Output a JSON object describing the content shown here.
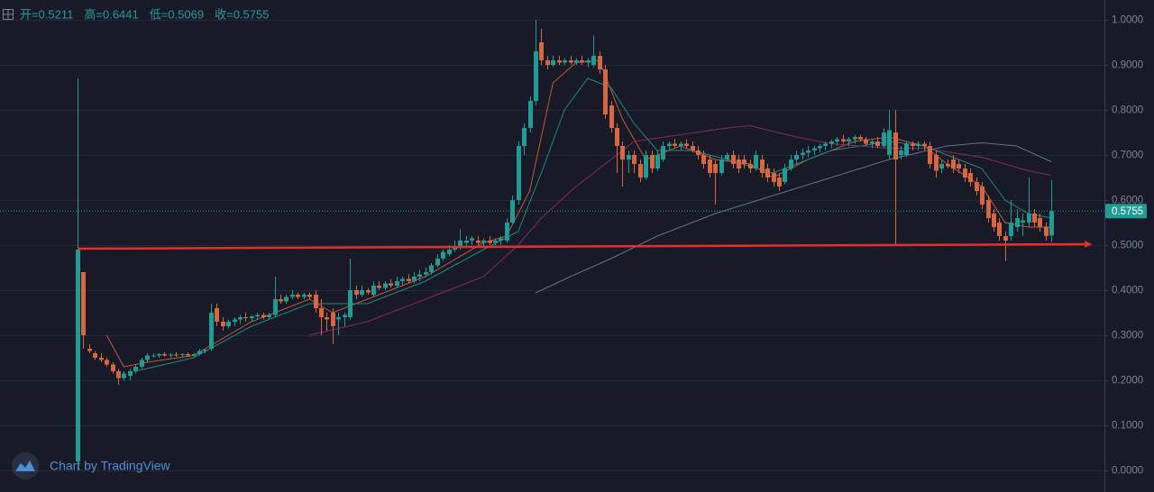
{
  "chart_data": {
    "type": "candlestick",
    "legend_items": [
      "开=0.5211",
      "高=0.6441",
      "低=0.5069",
      "收=0.5755"
    ],
    "watermark": "Chart by TradingView",
    "up_color": "#1f9c93",
    "down_color": "#d8673f",
    "grid": true,
    "ylim": [
      -0.048,
      1.044
    ],
    "yticks": [
      {
        "value": 0,
        "label": "0.0000"
      },
      {
        "value": 0.1,
        "label": "0.1000"
      },
      {
        "value": 0.2,
        "label": "0.2000"
      },
      {
        "value": 0.3,
        "label": "0.3000"
      },
      {
        "value": 0.4,
        "label": "0.4000"
      },
      {
        "value": 0.5,
        "label": "0.5000"
      },
      {
        "value": 0.6,
        "label": "0.6000"
      },
      {
        "value": 0.7,
        "label": "0.7000"
      },
      {
        "value": 0.8,
        "label": "0.8000"
      },
      {
        "value": 0.9,
        "label": "0.9000"
      },
      {
        "value": 1,
        "label": "1.0000"
      }
    ],
    "ohlc": [
      [
        0.02,
        0.87,
        0.0,
        0.49
      ],
      [
        0.44,
        0.44,
        0.27,
        0.3
      ],
      [
        0.27,
        0.28,
        0.26,
        0.265
      ],
      [
        0.26,
        0.265,
        0.245,
        0.25
      ],
      [
        0.25,
        0.26,
        0.24,
        0.245
      ],
      [
        0.245,
        0.25,
        0.23,
        0.235
      ],
      [
        0.235,
        0.24,
        0.215,
        0.22
      ],
      [
        0.22,
        0.225,
        0.19,
        0.205
      ],
      [
        0.205,
        0.22,
        0.2,
        0.215
      ],
      [
        0.21,
        0.225,
        0.2,
        0.22
      ],
      [
        0.22,
        0.235,
        0.215,
        0.23
      ],
      [
        0.23,
        0.25,
        0.225,
        0.245
      ],
      [
        0.245,
        0.26,
        0.24,
        0.255
      ],
      [
        0.255,
        0.26,
        0.25,
        0.255
      ],
      [
        0.255,
        0.26,
        0.25,
        0.258
      ],
      [
        0.258,
        0.262,
        0.252,
        0.255
      ],
      [
        0.255,
        0.26,
        0.25,
        0.257
      ],
      [
        0.257,
        0.262,
        0.252,
        0.256
      ],
      [
        0.256,
        0.26,
        0.25,
        0.258
      ],
      [
        0.258,
        0.262,
        0.252,
        0.255
      ],
      [
        0.255,
        0.26,
        0.25,
        0.258
      ],
      [
        0.258,
        0.27,
        0.255,
        0.265
      ],
      [
        0.265,
        0.27,
        0.26,
        0.268
      ],
      [
        0.27,
        0.37,
        0.265,
        0.35
      ],
      [
        0.36,
        0.37,
        0.32,
        0.33
      ],
      [
        0.33,
        0.34,
        0.31,
        0.32
      ],
      [
        0.32,
        0.335,
        0.315,
        0.33
      ],
      [
        0.33,
        0.34,
        0.32,
        0.335
      ],
      [
        0.335,
        0.345,
        0.325,
        0.34
      ],
      [
        0.34,
        0.35,
        0.33,
        0.338
      ],
      [
        0.338,
        0.345,
        0.33,
        0.342
      ],
      [
        0.342,
        0.35,
        0.335,
        0.345
      ],
      [
        0.345,
        0.35,
        0.335,
        0.34
      ],
      [
        0.34,
        0.35,
        0.335,
        0.345
      ],
      [
        0.345,
        0.43,
        0.34,
        0.38
      ],
      [
        0.38,
        0.39,
        0.37,
        0.375
      ],
      [
        0.375,
        0.39,
        0.37,
        0.385
      ],
      [
        0.385,
        0.4,
        0.38,
        0.39
      ],
      [
        0.39,
        0.395,
        0.38,
        0.385
      ],
      [
        0.385,
        0.395,
        0.38,
        0.39
      ],
      [
        0.39,
        0.395,
        0.38,
        0.385
      ],
      [
        0.39,
        0.4,
        0.35,
        0.36
      ],
      [
        0.36,
        0.38,
        0.3,
        0.34
      ],
      [
        0.34,
        0.35,
        0.31,
        0.335
      ],
      [
        0.35,
        0.36,
        0.28,
        0.32
      ],
      [
        0.335,
        0.35,
        0.3,
        0.34
      ],
      [
        0.34,
        0.35,
        0.32,
        0.345
      ],
      [
        0.34,
        0.47,
        0.335,
        0.4
      ],
      [
        0.4,
        0.41,
        0.38,
        0.39
      ],
      [
        0.39,
        0.41,
        0.385,
        0.4
      ],
      [
        0.4,
        0.405,
        0.39,
        0.395
      ],
      [
        0.39,
        0.42,
        0.385,
        0.41
      ],
      [
        0.41,
        0.42,
        0.4,
        0.405
      ],
      [
        0.405,
        0.42,
        0.4,
        0.415
      ],
      [
        0.415,
        0.425,
        0.405,
        0.41
      ],
      [
        0.41,
        0.43,
        0.405,
        0.42
      ],
      [
        0.42,
        0.43,
        0.41,
        0.425
      ],
      [
        0.425,
        0.435,
        0.415,
        0.42
      ],
      [
        0.42,
        0.44,
        0.415,
        0.43
      ],
      [
        0.43,
        0.445,
        0.42,
        0.435
      ],
      [
        0.435,
        0.45,
        0.43,
        0.44
      ],
      [
        0.44,
        0.46,
        0.435,
        0.455
      ],
      [
        0.455,
        0.48,
        0.45,
        0.47
      ],
      [
        0.47,
        0.49,
        0.465,
        0.485
      ],
      [
        0.48,
        0.5,
        0.475,
        0.49
      ],
      [
        0.49,
        0.51,
        0.485,
        0.495
      ],
      [
        0.495,
        0.535,
        0.49,
        0.51
      ],
      [
        0.505,
        0.52,
        0.495,
        0.51
      ],
      [
        0.51,
        0.52,
        0.5,
        0.515
      ],
      [
        0.51,
        0.52,
        0.5,
        0.505
      ],
      [
        0.505,
        0.515,
        0.495,
        0.51
      ],
      [
        0.51,
        0.52,
        0.5,
        0.505
      ],
      [
        0.505,
        0.515,
        0.5,
        0.51
      ],
      [
        0.51,
        0.52,
        0.5,
        0.515
      ],
      [
        0.51,
        0.56,
        0.505,
        0.55
      ],
      [
        0.55,
        0.61,
        0.545,
        0.6
      ],
      [
        0.6,
        0.73,
        0.59,
        0.72
      ],
      [
        0.72,
        0.77,
        0.7,
        0.76
      ],
      [
        0.76,
        0.83,
        0.75,
        0.82
      ],
      [
        0.82,
        1.0,
        0.81,
        0.93
      ],
      [
        0.95,
        0.98,
        0.9,
        0.91
      ],
      [
        0.91,
        0.92,
        0.89,
        0.9
      ],
      [
        0.9,
        0.92,
        0.895,
        0.91
      ],
      [
        0.91,
        0.92,
        0.9,
        0.905
      ],
      [
        0.905,
        0.915,
        0.9,
        0.91
      ],
      [
        0.91,
        0.92,
        0.9,
        0.905
      ],
      [
        0.905,
        0.915,
        0.9,
        0.91
      ],
      [
        0.91,
        0.92,
        0.9,
        0.905
      ],
      [
        0.905,
        0.915,
        0.895,
        0.91
      ],
      [
        0.9,
        0.965,
        0.895,
        0.92
      ],
      [
        0.92,
        0.93,
        0.88,
        0.89
      ],
      [
        0.89,
        0.9,
        0.78,
        0.79
      ],
      [
        0.81,
        0.82,
        0.75,
        0.76
      ],
      [
        0.76,
        0.77,
        0.66,
        0.72
      ],
      [
        0.72,
        0.73,
        0.63,
        0.69
      ],
      [
        0.69,
        0.71,
        0.66,
        0.7
      ],
      [
        0.7,
        0.71,
        0.66,
        0.68
      ],
      [
        0.68,
        0.69,
        0.64,
        0.65
      ],
      [
        0.65,
        0.71,
        0.645,
        0.7
      ],
      [
        0.7,
        0.71,
        0.66,
        0.67
      ],
      [
        0.67,
        0.71,
        0.665,
        0.7
      ],
      [
        0.69,
        0.73,
        0.685,
        0.72
      ],
      [
        0.72,
        0.73,
        0.71,
        0.725
      ],
      [
        0.725,
        0.735,
        0.715,
        0.72
      ],
      [
        0.72,
        0.73,
        0.71,
        0.725
      ],
      [
        0.725,
        0.735,
        0.715,
        0.72
      ],
      [
        0.72,
        0.73,
        0.705,
        0.71
      ],
      [
        0.71,
        0.72,
        0.69,
        0.7
      ],
      [
        0.7,
        0.71,
        0.67,
        0.68
      ],
      [
        0.69,
        0.7,
        0.65,
        0.66
      ],
      [
        0.68,
        0.69,
        0.59,
        0.66
      ],
      [
        0.66,
        0.7,
        0.655,
        0.69
      ],
      [
        0.69,
        0.705,
        0.685,
        0.7
      ],
      [
        0.7,
        0.71,
        0.67,
        0.68
      ],
      [
        0.69,
        0.7,
        0.66,
        0.67
      ],
      [
        0.69,
        0.7,
        0.67,
        0.68
      ],
      [
        0.68,
        0.69,
        0.66,
        0.67
      ],
      [
        0.67,
        0.71,
        0.665,
        0.7
      ],
      [
        0.69,
        0.7,
        0.65,
        0.66
      ],
      [
        0.67,
        0.68,
        0.64,
        0.65
      ],
      [
        0.66,
        0.67,
        0.63,
        0.64
      ],
      [
        0.65,
        0.66,
        0.62,
        0.63
      ],
      [
        0.64,
        0.68,
        0.635,
        0.67
      ],
      [
        0.67,
        0.7,
        0.665,
        0.69
      ],
      [
        0.69,
        0.71,
        0.68,
        0.7
      ],
      [
        0.7,
        0.715,
        0.69,
        0.705
      ],
      [
        0.705,
        0.72,
        0.695,
        0.71
      ],
      [
        0.71,
        0.72,
        0.7,
        0.715
      ],
      [
        0.715,
        0.725,
        0.705,
        0.72
      ],
      [
        0.72,
        0.73,
        0.71,
        0.725
      ],
      [
        0.725,
        0.735,
        0.715,
        0.73
      ],
      [
        0.73,
        0.74,
        0.72,
        0.735
      ],
      [
        0.735,
        0.745,
        0.725,
        0.73
      ],
      [
        0.73,
        0.74,
        0.72,
        0.735
      ],
      [
        0.735,
        0.745,
        0.725,
        0.74
      ],
      [
        0.74,
        0.745,
        0.73,
        0.735
      ],
      [
        0.735,
        0.74,
        0.72,
        0.725
      ],
      [
        0.725,
        0.735,
        0.715,
        0.73
      ],
      [
        0.73,
        0.74,
        0.715,
        0.72
      ],
      [
        0.72,
        0.76,
        0.715,
        0.75
      ],
      [
        0.7,
        0.8,
        0.69,
        0.755
      ],
      [
        0.75,
        0.8,
        0.5,
        0.69
      ],
      [
        0.7,
        0.72,
        0.69,
        0.71
      ],
      [
        0.7,
        0.73,
        0.695,
        0.725
      ],
      [
        0.725,
        0.73,
        0.71,
        0.72
      ],
      [
        0.72,
        0.73,
        0.71,
        0.725
      ],
      [
        0.725,
        0.73,
        0.71,
        0.72
      ],
      [
        0.72,
        0.73,
        0.67,
        0.68
      ],
      [
        0.7,
        0.71,
        0.65,
        0.665
      ],
      [
        0.67,
        0.69,
        0.66,
        0.68
      ],
      [
        0.68,
        0.69,
        0.67,
        0.675
      ],
      [
        0.69,
        0.7,
        0.66,
        0.67
      ],
      [
        0.68,
        0.69,
        0.66,
        0.67
      ],
      [
        0.67,
        0.68,
        0.64,
        0.65
      ],
      [
        0.66,
        0.67,
        0.63,
        0.64
      ],
      [
        0.64,
        0.65,
        0.61,
        0.62
      ],
      [
        0.63,
        0.64,
        0.58,
        0.59
      ],
      [
        0.6,
        0.61,
        0.55,
        0.56
      ],
      [
        0.57,
        0.58,
        0.53,
        0.54
      ],
      [
        0.55,
        0.56,
        0.51,
        0.52
      ],
      [
        0.52,
        0.53,
        0.465,
        0.51
      ],
      [
        0.52,
        0.6,
        0.51,
        0.55
      ],
      [
        0.54,
        0.58,
        0.53,
        0.56
      ],
      [
        0.55,
        0.57,
        0.52,
        0.555
      ],
      [
        0.55,
        0.65,
        0.54,
        0.57
      ],
      [
        0.57,
        0.58,
        0.54,
        0.55
      ],
      [
        0.56,
        0.57,
        0.53,
        0.54
      ],
      [
        0.54,
        0.55,
        0.51,
        0.52
      ],
      [
        0.5211,
        0.6441,
        0.5069,
        0.5755
      ]
    ],
    "moving_averages": [
      {
        "color": "#c8553a",
        "x": [
          5,
          8,
          12,
          20,
          30,
          40,
          44,
          50,
          60,
          70,
          74,
          78,
          82,
          86,
          90,
          94,
          98,
          104,
          110,
          116,
          120,
          126,
          134,
          140,
          146,
          150,
          156,
          160,
          164,
          168
        ],
        "values": [
          0.3,
          0.23,
          0.24,
          0.255,
          0.33,
          0.38,
          0.35,
          0.38,
          0.43,
          0.505,
          0.52,
          0.62,
          0.86,
          0.905,
          0.91,
          0.78,
          0.69,
          0.72,
          0.69,
          0.68,
          0.65,
          0.69,
          0.73,
          0.74,
          0.72,
          0.68,
          0.63,
          0.55,
          0.54,
          0.54
        ]
      },
      {
        "color": "#1c8a84",
        "x": [
          10,
          20,
          30,
          40,
          50,
          60,
          70,
          76,
          80,
          84,
          88,
          92,
          96,
          100,
          106,
          112,
          120,
          130,
          140,
          146,
          150,
          156,
          160,
          164,
          168
        ],
        "values": [
          0.22,
          0.25,
          0.32,
          0.37,
          0.37,
          0.42,
          0.49,
          0.53,
          0.66,
          0.8,
          0.87,
          0.85,
          0.77,
          0.71,
          0.71,
          0.69,
          0.66,
          0.71,
          0.73,
          0.72,
          0.7,
          0.67,
          0.6,
          0.57,
          0.56
        ]
      },
      {
        "color": "#86285f",
        "x": [
          40,
          50,
          60,
          70,
          76,
          80,
          86,
          96,
          104,
          112,
          116,
          124,
          130,
          140,
          146,
          156,
          164,
          168
        ],
        "values": [
          0.3,
          0.33,
          0.38,
          0.43,
          0.5,
          0.56,
          0.63,
          0.73,
          0.745,
          0.76,
          0.765,
          0.74,
          0.725,
          0.715,
          0.715,
          0.695,
          0.665,
          0.655
        ]
      },
      {
        "color": "#5b7683",
        "x": [
          79,
          85,
          92,
          100,
          110,
          120,
          130,
          140,
          150,
          156,
          162,
          168
        ],
        "values": [
          0.394,
          0.43,
          0.47,
          0.52,
          0.57,
          0.61,
          0.65,
          0.69,
          0.72,
          0.727,
          0.72,
          0.685
        ]
      }
    ],
    "trend_line": {
      "color": "#e5302a",
      "x": [
        0,
        175
      ],
      "y": [
        0.492,
        0.502
      ]
    }
  }
}
